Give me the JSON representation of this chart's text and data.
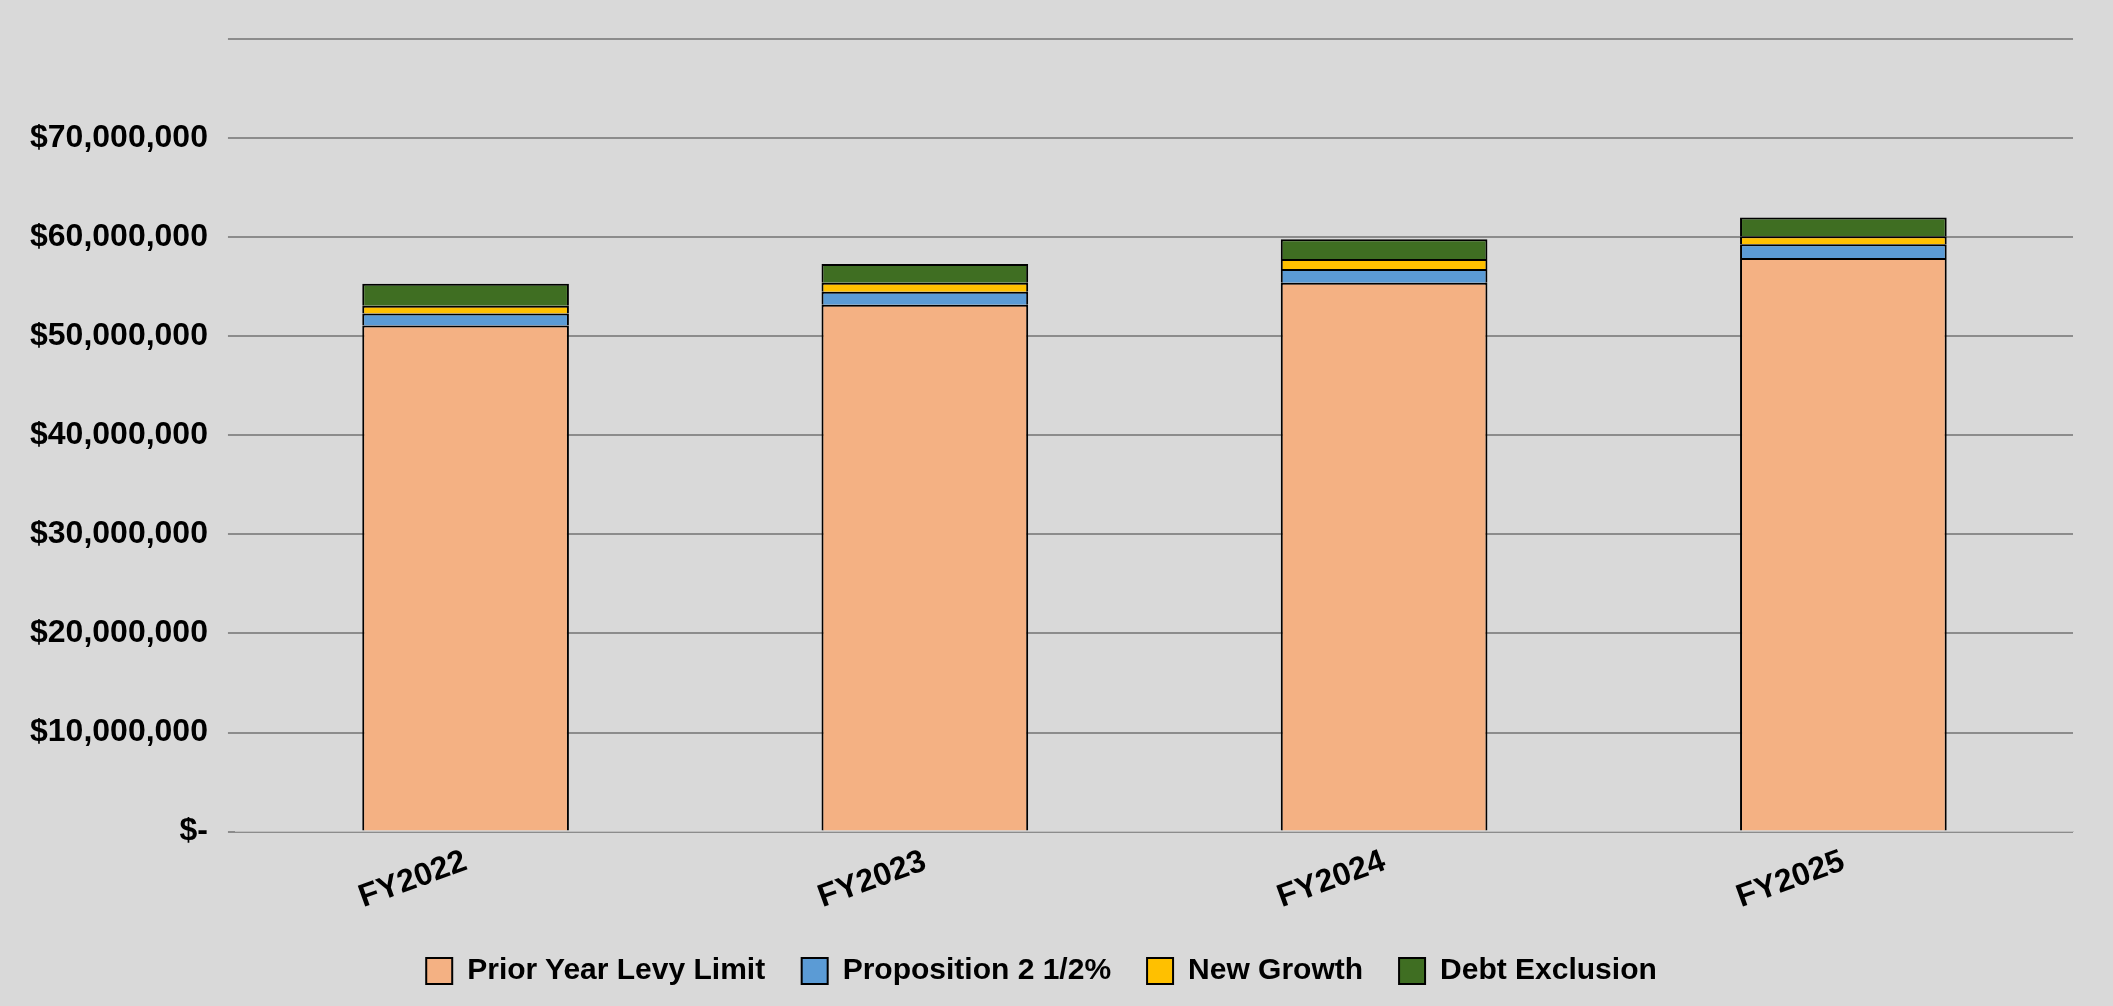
{
  "chart_data": {
    "type": "bar",
    "stacked": true,
    "categories": [
      "FY2022",
      "FY2023",
      "FY2024",
      "FY2025"
    ],
    "series": [
      {
        "name": "Prior Year Levy Limit",
        "color": "#f4b183",
        "values": [
          51100000,
          53200000,
          55400000,
          57900000
        ]
      },
      {
        "name": "Proposition 2 1/2%",
        "color": "#5b9bd5",
        "values": [
          1200000,
          1300000,
          1400000,
          1400000
        ]
      },
      {
        "name": "New Growth",
        "color": "#ffc000",
        "values": [
          800000,
          900000,
          1000000,
          800000
        ]
      },
      {
        "name": "Debt Exclusion",
        "color": "#3f6e22",
        "values": [
          2200000,
          1900000,
          2000000,
          1900000
        ]
      }
    ],
    "ylim": [
      0,
      80000000
    ],
    "yticks": [
      {
        "value": 0,
        "label": "$-"
      },
      {
        "value": 10000000,
        "label": "$10,000,000"
      },
      {
        "value": 20000000,
        "label": "$20,000,000"
      },
      {
        "value": 30000000,
        "label": "$30,000,000"
      },
      {
        "value": 40000000,
        "label": "$40,000,000"
      },
      {
        "value": 50000000,
        "label": "$50,000,000"
      },
      {
        "value": 60000000,
        "label": "$60,000,000"
      },
      {
        "value": 70000000,
        "label": "$70,000,000"
      },
      {
        "value": 80000000,
        "label": null
      }
    ],
    "grid": "y",
    "legend": "bottom"
  }
}
